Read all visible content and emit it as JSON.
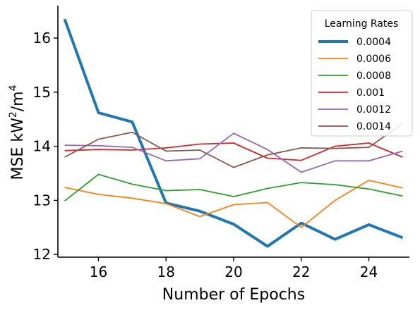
{
  "chart_data": {
    "type": "line",
    "xlabel": "Number of Epochs",
    "ylabel_main": "MSE kW",
    "ylabel_sup1": "2",
    "ylabel_mid": "/m",
    "ylabel_sup2": "4",
    "xlim": [
      14.8,
      25.2
    ],
    "ylim": [
      11.95,
      16.6
    ],
    "xticks": [
      16,
      18,
      20,
      22,
      24
    ],
    "yticks": [
      12,
      13,
      14,
      15,
      16
    ],
    "grid": false,
    "legend": {
      "title": "Learning Rates",
      "placement": "top-right"
    },
    "x": [
      15,
      16,
      17,
      18,
      19,
      20,
      21,
      22,
      23,
      24,
      25
    ],
    "series": [
      {
        "name": "0.0004",
        "color": "#1f77b4",
        "width": "thick",
        "values": [
          16.35,
          14.62,
          14.45,
          12.95,
          12.8,
          12.56,
          12.15,
          12.58,
          12.28,
          12.55,
          12.31
        ]
      },
      {
        "name": "0.0006",
        "color": "#ff7f0e",
        "width": "normal",
        "values": [
          13.24,
          13.11,
          13.04,
          12.94,
          12.7,
          12.92,
          12.96,
          12.5,
          13.0,
          13.37,
          13.23
        ]
      },
      {
        "name": "0.0008",
        "color": "#2ca02c",
        "width": "normal",
        "values": [
          12.99,
          13.48,
          13.3,
          13.18,
          13.2,
          13.07,
          13.22,
          13.33,
          13.29,
          13.21,
          13.08
        ]
      },
      {
        "name": "0.001",
        "color": "#d62728",
        "width": "normal",
        "values": [
          13.92,
          13.94,
          13.93,
          13.97,
          14.04,
          14.06,
          13.78,
          13.74,
          14.0,
          14.06,
          13.8
        ]
      },
      {
        "name": "0.0012",
        "color": "#9467bd",
        "width": "normal",
        "values": [
          14.02,
          14.01,
          13.98,
          13.73,
          13.77,
          14.24,
          13.94,
          13.52,
          13.73,
          13.73,
          13.91
        ]
      },
      {
        "name": "0.0014",
        "color": "#8c564b",
        "width": "normal",
        "values": [
          13.8,
          14.13,
          14.26,
          13.91,
          13.93,
          13.61,
          13.84,
          13.97,
          13.96,
          13.98,
          14.42
        ]
      }
    ]
  }
}
